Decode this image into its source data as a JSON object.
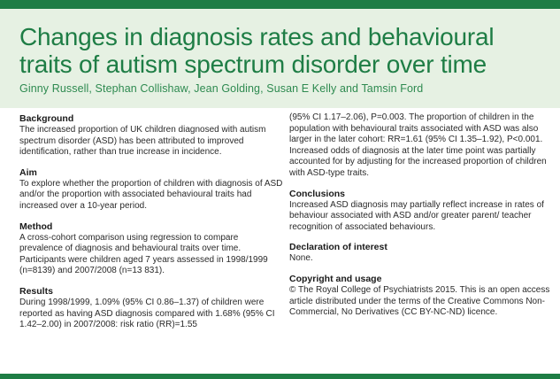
{
  "title": "Changes in diagnosis rates and behavioural traits of autism spectrum disorder over time",
  "authors": "Ginny Russell, Stephan Collishaw, Jean Golding, Susan E Kelly and Tamsin Ford",
  "background": {
    "heading": "Background",
    "text": "The increased proportion of UK children diagnosed with autism spectrum disorder (ASD) has been attributed to improved identification, rather than true increase in incidence."
  },
  "aim": {
    "heading": "Aim",
    "text": "To explore whether the proportion of children with diagnosis of ASD and/or the proportion with associated behavioural traits had increased over a 10-year period."
  },
  "method": {
    "heading": "Method",
    "text": "A cross-cohort comparison using regression to compare prevalence of diagnosis and behavioural traits over time. Participants were children aged 7 years assessed in 1998/1999 (n=8139) and 2007/2008 (n=13 831)."
  },
  "results": {
    "heading": "Results",
    "text": "During 1998/1999, 1.09% (95% CI 0.86–1.37) of children were reported as having ASD diagnosis compared with 1.68% (95% CI 1.42–2.00) in 2007/2008: risk ratio (RR)=1.55",
    "continued": "(95% CI 1.17–2.06), P=0.003. The proportion of children in the population with behavioural traits associated with ASD was also larger in the later cohort: RR=1.61 (95% CI 1.35–1.92), P<0.001. Increased odds of diagnosis at the later time point was partially accounted for by adjusting for the increased proportion of children with ASD-type traits."
  },
  "conclusions": {
    "heading": "Conclusions",
    "text": "Increased ASD diagnosis may partially reflect increase in rates of behaviour associated with ASD and/or greater parent/ teacher recognition of associated behaviours."
  },
  "declaration": {
    "heading": "Declaration of interest",
    "text": "None."
  },
  "copyright": {
    "heading": "Copyright and usage",
    "text": "© The Royal College of Psychiatrists 2015. This is an open access article distributed under the terms of the Creative Commons Non-Commercial, No Derivatives (CC BY-NC-ND) licence."
  },
  "colors": {
    "brand_green": "#1e7d45",
    "header_tint": "#e6f1e3"
  }
}
